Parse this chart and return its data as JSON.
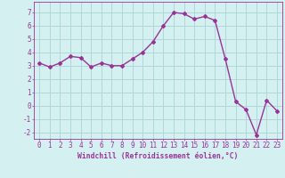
{
  "x": [
    0,
    1,
    2,
    3,
    4,
    5,
    6,
    7,
    8,
    9,
    10,
    11,
    12,
    13,
    14,
    15,
    16,
    17,
    18,
    19,
    20,
    21,
    22,
    23
  ],
  "y": [
    3.2,
    2.9,
    3.2,
    3.7,
    3.6,
    2.9,
    3.2,
    3.0,
    3.0,
    3.5,
    4.0,
    4.8,
    6.0,
    7.0,
    6.9,
    6.5,
    6.7,
    6.4,
    3.5,
    0.3,
    -0.3,
    -2.2,
    0.4,
    -0.4
  ],
  "line_color": "#993399",
  "marker": "D",
  "marker_size": 2.0,
  "line_width": 1.0,
  "bg_color": "#d4f0f0",
  "grid_color": "#b0d8d8",
  "xlabel": "Windchill (Refroidissement éolien,°C)",
  "xlim": [
    -0.5,
    23.5
  ],
  "ylim": [
    -2.5,
    7.8
  ],
  "yticks": [
    -2,
    -1,
    0,
    1,
    2,
    3,
    4,
    5,
    6,
    7
  ],
  "xticks": [
    0,
    1,
    2,
    3,
    4,
    5,
    6,
    7,
    8,
    9,
    10,
    11,
    12,
    13,
    14,
    15,
    16,
    17,
    18,
    19,
    20,
    21,
    22,
    23
  ],
  "tick_color": "#993399",
  "label_fontsize": 5.8,
  "tick_fontsize": 5.5
}
